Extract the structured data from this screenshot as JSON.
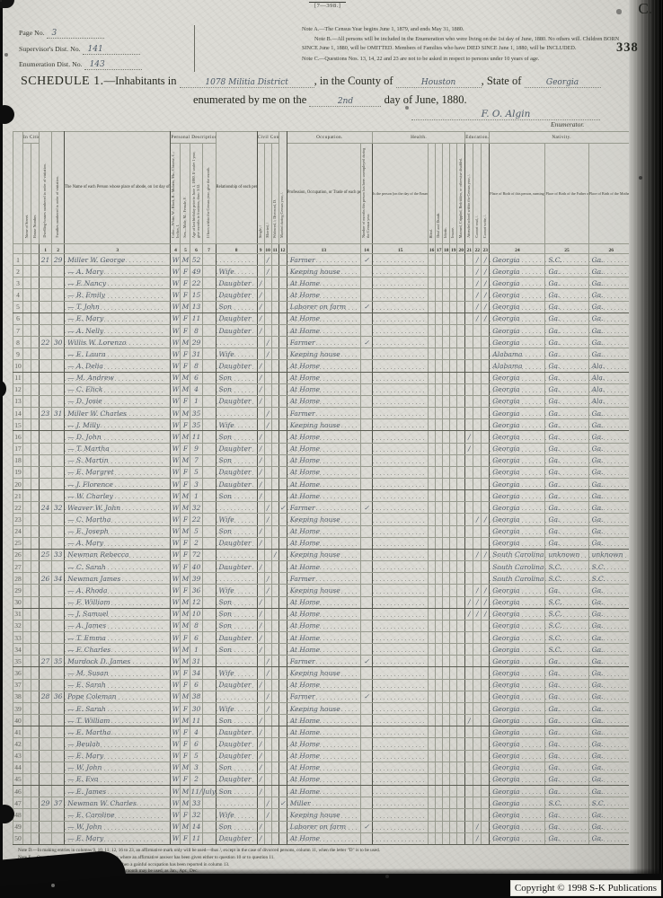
{
  "page": {
    "form_number": "[7—398.]",
    "corner_letter": "C.",
    "stamp_number": "338",
    "copyright": "Copyright © 1998 S-K Publications"
  },
  "header": {
    "page_no_label": "Page No.",
    "page_no_value": "3",
    "supervisor_label": "Supervisor's Dist. No.",
    "supervisor_value": "141",
    "enumeration_label": "Enumeration Dist. No.",
    "enumeration_value": "143",
    "note_a": "Note A.—The Census Year begins June 1, 1879, and ends May 31, 1880.",
    "note_b": "Note B.—All persons will be included in the Enumeration who were living on the 1st day of June, 1880.  No others will.  Children BORN SINCE June 1, 1880, will be OMITTED.  Members of Families who have DIED SINCE June 1, 1880, will be INCLUDED.",
    "note_c": "Note C.—Questions Nos. 13, 14, 22 and 23 are not to be asked in respect to persons under 10 years of age.",
    "schedule_label": "SCHEDULE 1.",
    "schedule_rest": "—Inhabitants in",
    "schedule_place": "1078 Militia District",
    "county_label": ", in the County of",
    "county_value": "Houston",
    "state_label": ", State of",
    "state_value": "Georgia",
    "enumerated_label": "enumerated by me on the",
    "enumerated_day": "2nd",
    "enumerated_rest": "day of June, 1880.",
    "signature": "F. O. Algin",
    "enumerator_label": "Enumerator."
  },
  "table": {
    "groups": {
      "in_cities": "In Cities.",
      "personal": "Personal Description.",
      "civil": "Civil Condition.",
      "occupation": "Occupation.",
      "health": "Health.",
      "education": "Education.",
      "nativity": "Nativity."
    },
    "cols": {
      "street": "Name of Street.",
      "house": "House Number.",
      "c1": "Dwelling-houses numbered in order of visitation.",
      "c2": "Families numbered in order of visitation.",
      "c3": "The Name of each Person whose place of abode, on 1st day of June, 1880, was in this family.",
      "c4": "Color—White, W.; Black, B.; Mulatto, Mu.; Chinese, C.; Indian, I.",
      "c5": "Sex—Male, M.; Female, F.",
      "c6": "Age at last birthday prior to June 1, 1880.  If under 1 year, give months in fractions, thus: 3/12.",
      "c7": "If born within the Census year, give the month.",
      "c8": "Relationship of each person to the head of this family—whether wife, son, daughter, servant, boarder, or other.",
      "c9": "Single, /",
      "c10": "Married, /",
      "c11": "Widowed, /; Divorced, D.",
      "c12": "Married during Census year, /.",
      "c13": "Profession, Occupation, or Trade of each person, male or female.",
      "c14": "Number of months this person has been unemployed during the Census year.",
      "c15": "Is the person [on the day of the Enumerator's visit] sick or temporarily disabled, so as to be unable to attend to ordinary business or duties?  If so, what is the sickness or disability?",
      "c16": "Blind.",
      "c17": "Deaf and Dumb.",
      "c18": "Idiotic.",
      "c19": "Insane.",
      "c20": "Maimed, Crippled, Bedridden, or otherwise disabled.",
      "c21": "Attended school within the Census year, /.",
      "c22": "Cannot read, /.",
      "c23": "Cannot write, /.",
      "c24": "Place of Birth of this person, naming State or Territory of United States, or the Country, if of foreign birth.",
      "c25": "Place of Birth of the Father of this person, naming State or Territory of United States, or the Country, if of foreign birth.",
      "c26": "Place of Birth of the Mother of this person, naming State or Territory of United States, or the Country, if of foreign birth."
    },
    "nums": [
      "1",
      "2",
      "3",
      "4",
      "5",
      "6",
      "7",
      "8",
      "9",
      "10",
      "11",
      "12",
      "13",
      "14",
      "15",
      "16",
      "17",
      "18",
      "19",
      "20",
      "21",
      "22",
      "23",
      "24",
      "25",
      "26"
    ],
    "rows": [
      {
        "n": 1,
        "dw": "21",
        "fam": "29",
        "name": "Miller W. George",
        "c": "W",
        "s": "M",
        "a": "52",
        "mar": "/",
        "occ": "Farmer",
        "une": "✓",
        "cre": "/",
        "cwr": "/",
        "bp": "Georgia",
        "fb": "S.C.",
        "mb": "Ga."
      },
      {
        "n": 2,
        "name": "— A. Mary",
        "c": "W",
        "s": "F",
        "a": "49",
        "rel": "Wife",
        "mar": "/",
        "occ": "Keeping house",
        "cre": "/",
        "cwr": "/",
        "bp": "Georgia",
        "fb": "Ga.",
        "mb": "Ga."
      },
      {
        "n": 3,
        "name": "— F. Nancy",
        "c": "W",
        "s": "F",
        "a": "22",
        "rel": "Daughter",
        "sng": "/",
        "occ": "At Home",
        "cre": "/",
        "cwr": "/",
        "bp": "Georgia",
        "fb": "Ga.",
        "mb": "Ga."
      },
      {
        "n": 4,
        "name": "— R. Emily",
        "c": "W",
        "s": "F",
        "a": "15",
        "rel": "Daughter",
        "sng": "/",
        "occ": "At Home",
        "cre": "/",
        "cwr": "/",
        "bp": "Georgia",
        "fb": "Ga.",
        "mb": "Ga."
      },
      {
        "n": 5,
        "name": "— T. John",
        "c": "W",
        "s": "M",
        "a": "13",
        "rel": "Son",
        "sng": "/",
        "occ": "Laborer on farm",
        "une": "✓",
        "cre": "/",
        "cwr": "/",
        "bp": "Georgia",
        "fb": "Ga.",
        "mb": "Ga."
      },
      {
        "n": 6,
        "name": "— E. Mary",
        "c": "W",
        "s": "F",
        "a": "11",
        "rel": "Daughter",
        "sng": "/",
        "occ": "At Home",
        "cre": "/",
        "cwr": "/",
        "bp": "Georgia",
        "fb": "Ga.",
        "mb": "Ga."
      },
      {
        "n": 7,
        "name": "— A. Nelly",
        "c": "W",
        "s": "F",
        "a": "8",
        "rel": "Daughter",
        "sng": "/",
        "occ": "At Home",
        "bp": "Georgia",
        "fb": "Ga.",
        "mb": "Ga."
      },
      {
        "n": 8,
        "dw": "22",
        "fam": "30",
        "name": "Willis W. Lorenzo",
        "c": "W",
        "s": "M",
        "a": "29",
        "mar": "/",
        "occ": "Farmer",
        "une": "✓",
        "bp": "Georgia",
        "fb": "Ga.",
        "mb": "Ga."
      },
      {
        "n": 9,
        "name": "— E. Laura",
        "c": "W",
        "s": "F",
        "a": "31",
        "rel": "Wife",
        "mar": "/",
        "occ": "Keeping house",
        "bp": "Alabama",
        "fb": "Ga.",
        "mb": "Ga."
      },
      {
        "n": 10,
        "name": "— A. Delia",
        "c": "W",
        "s": "F",
        "a": "8",
        "rel": "Daughter",
        "sng": "/",
        "occ": "At Home",
        "bp": "Alabama",
        "fb": "Ga.",
        "mb": "Ala."
      },
      {
        "n": 11,
        "name": "— M. Andrew",
        "c": "W",
        "s": "M",
        "a": "6",
        "rel": "Son",
        "sng": "/",
        "occ": "At Home",
        "bp": "Georgia",
        "fb": "Ga.",
        "mb": "Ala."
      },
      {
        "n": 12,
        "name": "— C. Elick",
        "c": "W",
        "s": "M",
        "a": "4",
        "rel": "Son",
        "sng": "/",
        "occ": "At Home",
        "bp": "Georgia",
        "fb": "Ga.",
        "mb": "Ala."
      },
      {
        "n": 13,
        "name": "— D. Josie",
        "c": "W",
        "s": "F",
        "a": "1",
        "rel": "Daughter",
        "sng": "/",
        "occ": "At Home",
        "bp": "Georgia",
        "fb": "Ga.",
        "mb": "Ala."
      },
      {
        "n": 14,
        "dw": "23",
        "fam": "31",
        "name": "Miller W. Charles",
        "c": "W",
        "s": "M",
        "a": "35",
        "mar": "/",
        "occ": "Farmer",
        "bp": "Georgia",
        "fb": "Ga.",
        "mb": "Ga."
      },
      {
        "n": 15,
        "name": "— J. Milly",
        "c": "W",
        "s": "F",
        "a": "35",
        "rel": "Wife",
        "mar": "/",
        "occ": "Keeping house",
        "bp": "Georgia",
        "fb": "Ga.",
        "mb": "Ga."
      },
      {
        "n": 16,
        "name": "— D. John",
        "c": "W",
        "s": "M",
        "a": "11",
        "rel": "Son",
        "sng": "/",
        "occ": "At Home",
        "sch": "/",
        "bp": "Georgia",
        "fb": "Ga.",
        "mb": "Ga."
      },
      {
        "n": 17,
        "name": "— T. Martha",
        "c": "W",
        "s": "F",
        "a": "9",
        "rel": "Daughter",
        "sng": "/",
        "occ": "At Home",
        "sch": "/",
        "bp": "Georgia",
        "fb": "Ga.",
        "mb": "Ga."
      },
      {
        "n": 18,
        "name": "— S. Martin",
        "c": "W",
        "s": "M",
        "a": "7",
        "rel": "Son",
        "sng": "/",
        "occ": "At Home",
        "bp": "Georgia",
        "fb": "Ga.",
        "mb": "Ga."
      },
      {
        "n": 19,
        "name": "— E. Margret",
        "c": "W",
        "s": "F",
        "a": "5",
        "rel": "Daughter",
        "sng": "/",
        "occ": "At Home",
        "bp": "Georgia",
        "fb": "Ga.",
        "mb": "Ga."
      },
      {
        "n": 20,
        "name": "— J. Florence",
        "c": "W",
        "s": "F",
        "a": "3",
        "rel": "Daughter",
        "sng": "/",
        "occ": "At Home",
        "bp": "Georgia",
        "fb": "Ga.",
        "mb": "Ga."
      },
      {
        "n": 21,
        "name": "— W. Charley",
        "c": "W",
        "s": "M",
        "a": "1",
        "rel": "Son",
        "sng": "/",
        "occ": "At Home",
        "bp": "Georgia",
        "fb": "Ga.",
        "mb": "Ga."
      },
      {
        "n": 22,
        "dw": "24",
        "fam": "32",
        "name": "Weaver W. John",
        "c": "W",
        "s": "M",
        "a": "32",
        "mar": "/",
        "myr": "✓",
        "occ": "Farmer",
        "une": "✓",
        "bp": "Georgia",
        "fb": "Ga.",
        "mb": "Ga."
      },
      {
        "n": 23,
        "name": "— C. Martha",
        "c": "W",
        "s": "F",
        "a": "22",
        "rel": "Wife",
        "mar": "/",
        "occ": "Keeping house",
        "cre": "/",
        "cwr": "/",
        "bp": "Georgia",
        "fb": "Ga.",
        "mb": "Ga."
      },
      {
        "n": 24,
        "name": "— E. Joseph",
        "c": "W",
        "s": "M",
        "a": "5",
        "rel": "Son",
        "sng": "/",
        "occ": "At Home",
        "bp": "Georgia",
        "fb": "Ga.",
        "mb": "Ga."
      },
      {
        "n": 25,
        "name": "— A. Mary",
        "c": "W",
        "s": "F",
        "a": "2",
        "rel": "Daughter",
        "sng": "/",
        "occ": "At Home",
        "bp": "Georgia",
        "fb": "Ga.",
        "mb": "Ga."
      },
      {
        "n": 26,
        "dw": "25",
        "fam": "33",
        "name": "Newman Rebecca",
        "c": "W",
        "s": "F",
        "a": "72",
        "wid": "/",
        "occ": "Keeping house",
        "cre": "/",
        "cwr": "/",
        "bp": "South Carolina",
        "fb": "unknown",
        "mb": "unknown"
      },
      {
        "n": 27,
        "name": "— C. Sarah",
        "c": "W",
        "s": "F",
        "a": "40",
        "rel": "Daughter",
        "sng": "/",
        "occ": "At Home",
        "bp": "South Carolina",
        "fb": "S.C.",
        "mb": "S.C."
      },
      {
        "n": 28,
        "dw": "26",
        "fam": "34",
        "name": "Newman James",
        "c": "W",
        "s": "M",
        "a": "39",
        "mar": "/",
        "occ": "Farmer",
        "bp": "South Carolina",
        "fb": "S.C.",
        "mb": "S.C."
      },
      {
        "n": 29,
        "name": "— A. Rhoda",
        "c": "W",
        "s": "F",
        "a": "36",
        "rel": "Wife",
        "mar": "/",
        "occ": "Keeping house",
        "cre": "/",
        "cwr": "/",
        "bp": "Georgia",
        "fb": "Ga.",
        "mb": "Ga."
      },
      {
        "n": 30,
        "name": "— F. William",
        "c": "W",
        "s": "M",
        "a": "12",
        "rel": "Son",
        "sng": "/",
        "occ": "At Home",
        "sch": "/",
        "cre": "/",
        "cwr": "/",
        "bp": "Georgia",
        "fb": "S.C.",
        "mb": "Ga."
      },
      {
        "n": 31,
        "name": "— J. Samuel",
        "c": "W",
        "s": "M",
        "a": "10",
        "rel": "Son",
        "sng": "/",
        "occ": "At Home",
        "sch": "/",
        "cre": "/",
        "cwr": "/",
        "bp": "Georgia",
        "fb": "S.C.",
        "mb": "Ga."
      },
      {
        "n": 32,
        "name": "— A. James",
        "c": "W",
        "s": "M",
        "a": "8",
        "rel": "Son",
        "sng": "/",
        "occ": "At Home",
        "bp": "Georgia",
        "fb": "S.C.",
        "mb": "Ga."
      },
      {
        "n": 33,
        "name": "— T. Emma",
        "c": "W",
        "s": "F",
        "a": "6",
        "rel": "Daughter",
        "sng": "/",
        "occ": "At Home",
        "bp": "Georgia",
        "fb": "S.C.",
        "mb": "Ga."
      },
      {
        "n": 34,
        "name": "— F. Charles",
        "c": "W",
        "s": "M",
        "a": "1",
        "rel": "Son",
        "sng": "/",
        "occ": "At Home",
        "bp": "Georgia",
        "fb": "S.C.",
        "mb": "Ga."
      },
      {
        "n": 35,
        "dw": "27",
        "fam": "35",
        "name": "Murdock D. James",
        "c": "W",
        "s": "M",
        "a": "31",
        "mar": "/",
        "occ": "Farmer",
        "une": "✓",
        "bp": "Georgia",
        "fb": "Ga.",
        "mb": "Ga."
      },
      {
        "n": 36,
        "name": "— M. Susan",
        "c": "W",
        "s": "F",
        "a": "34",
        "rel": "Wife",
        "mar": "/",
        "occ": "Keeping house",
        "bp": "Georgia",
        "fb": "Ga.",
        "mb": "Ga."
      },
      {
        "n": 37,
        "name": "— E. Sarah",
        "c": "W",
        "s": "F",
        "a": "6",
        "rel": "Daughter",
        "sng": "/",
        "occ": "At Home",
        "bp": "Georgia",
        "fb": "Ga.",
        "mb": "Ga."
      },
      {
        "n": 38,
        "dw": "28",
        "fam": "36",
        "name": "Pope Coleman",
        "c": "W",
        "s": "M",
        "a": "38",
        "mar": "/",
        "occ": "Farmer",
        "une": "✓",
        "bp": "Georgia",
        "fb": "Ga.",
        "mb": "Ga."
      },
      {
        "n": 39,
        "name": "— E. Sarah",
        "c": "W",
        "s": "F",
        "a": "30",
        "rel": "Wife",
        "mar": "/",
        "occ": "Keeping house",
        "bp": "Georgia",
        "fb": "Ga.",
        "mb": "Ga."
      },
      {
        "n": 40,
        "name": "— T. William",
        "c": "W",
        "s": "M",
        "a": "11",
        "rel": "Son",
        "sng": "/",
        "occ": "At Home",
        "sch": "/",
        "bp": "Georgia",
        "fb": "Ga.",
        "mb": "Ga."
      },
      {
        "n": 41,
        "name": "— E. Martha",
        "c": "W",
        "s": "F",
        "a": "4",
        "rel": "Daughter",
        "sng": "/",
        "occ": "At Home",
        "bp": "Georgia",
        "fb": "Ga.",
        "mb": "Ga."
      },
      {
        "n": 42,
        "name": "— Beulah",
        "c": "W",
        "s": "F",
        "a": "6",
        "rel": "Daughter",
        "sng": "/",
        "occ": "At Home",
        "bp": "Georgia",
        "fb": "Ga.",
        "mb": "Ga."
      },
      {
        "n": 43,
        "name": "— E. Mary",
        "c": "W",
        "s": "F",
        "a": "5",
        "rel": "Daughter",
        "sng": "/",
        "occ": "At Home",
        "bp": "Georgia",
        "fb": "Ga.",
        "mb": "Ga."
      },
      {
        "n": 44,
        "name": "— W. John",
        "c": "W",
        "s": "M",
        "a": "3",
        "rel": "Son",
        "sng": "/",
        "occ": "At Home",
        "bp": "Georgia",
        "fb": "Ga.",
        "mb": "Ga."
      },
      {
        "n": 45,
        "name": "— E. Eva",
        "c": "W",
        "s": "F",
        "a": "2",
        "rel": "Daughter",
        "sng": "/",
        "occ": "At Home",
        "bp": "Georgia",
        "fb": "Ga.",
        "mb": "Ga."
      },
      {
        "n": 46,
        "name": "— E. James",
        "c": "W",
        "s": "M",
        "a": "11/12",
        "mon": "July",
        "rel": "Son",
        "sng": "/",
        "occ": "At Home",
        "bp": "Georgia",
        "fb": "Ga.",
        "mb": "Ga."
      },
      {
        "n": 47,
        "dw": "29",
        "fam": "37",
        "name": "Newman W. Charles",
        "c": "W",
        "s": "M",
        "a": "33",
        "mar": "/",
        "myr": "✓",
        "occ": "Miller",
        "bp": "Georgia",
        "fb": "S.C.",
        "mb": "S.C."
      },
      {
        "n": 48,
        "name": "— E. Caroline",
        "c": "W",
        "s": "F",
        "a": "32",
        "rel": "Wife",
        "mar": "/",
        "occ": "Keeping house",
        "bp": "Georgia",
        "fb": "Ga.",
        "mb": "Ga."
      },
      {
        "n": 49,
        "name": "— W. John",
        "c": "W",
        "s": "M",
        "a": "14",
        "rel": "Son",
        "sng": "/",
        "occ": "Laborer on farm",
        "une": "✓",
        "cre": "/",
        "bp": "Georgia",
        "fb": "Ga.",
        "mb": "Ga."
      },
      {
        "n": 50,
        "name": "— E. Mary",
        "c": "W",
        "s": "F",
        "a": "11",
        "rel": "Daughter",
        "sng": "/",
        "occ": "At Home",
        "cre": "/",
        "bp": "Georgia",
        "fb": "Ga.",
        "mb": "Ga."
      }
    ]
  },
  "footer": {
    "notes": [
      "Note D.—In making entries in columns 9, 10, 11, 12, 16 to 23, an affirmative mark only will be used—thus /, except in the case of divorced persons, column 11, when the letter \"D\" is to be used.",
      "Note E.—Question No. 12 will only be asked in cases where an affirmative answer has been given either to question 10 or to question 11.",
      "Note F.—Question No. 14 will only be asked in cases when a gainful occupation has been reported in column 13.",
      "Note G.—In column 7 an abbreviation in the name of the month may be used, as Jan., Apr., Dec."
    ]
  }
}
